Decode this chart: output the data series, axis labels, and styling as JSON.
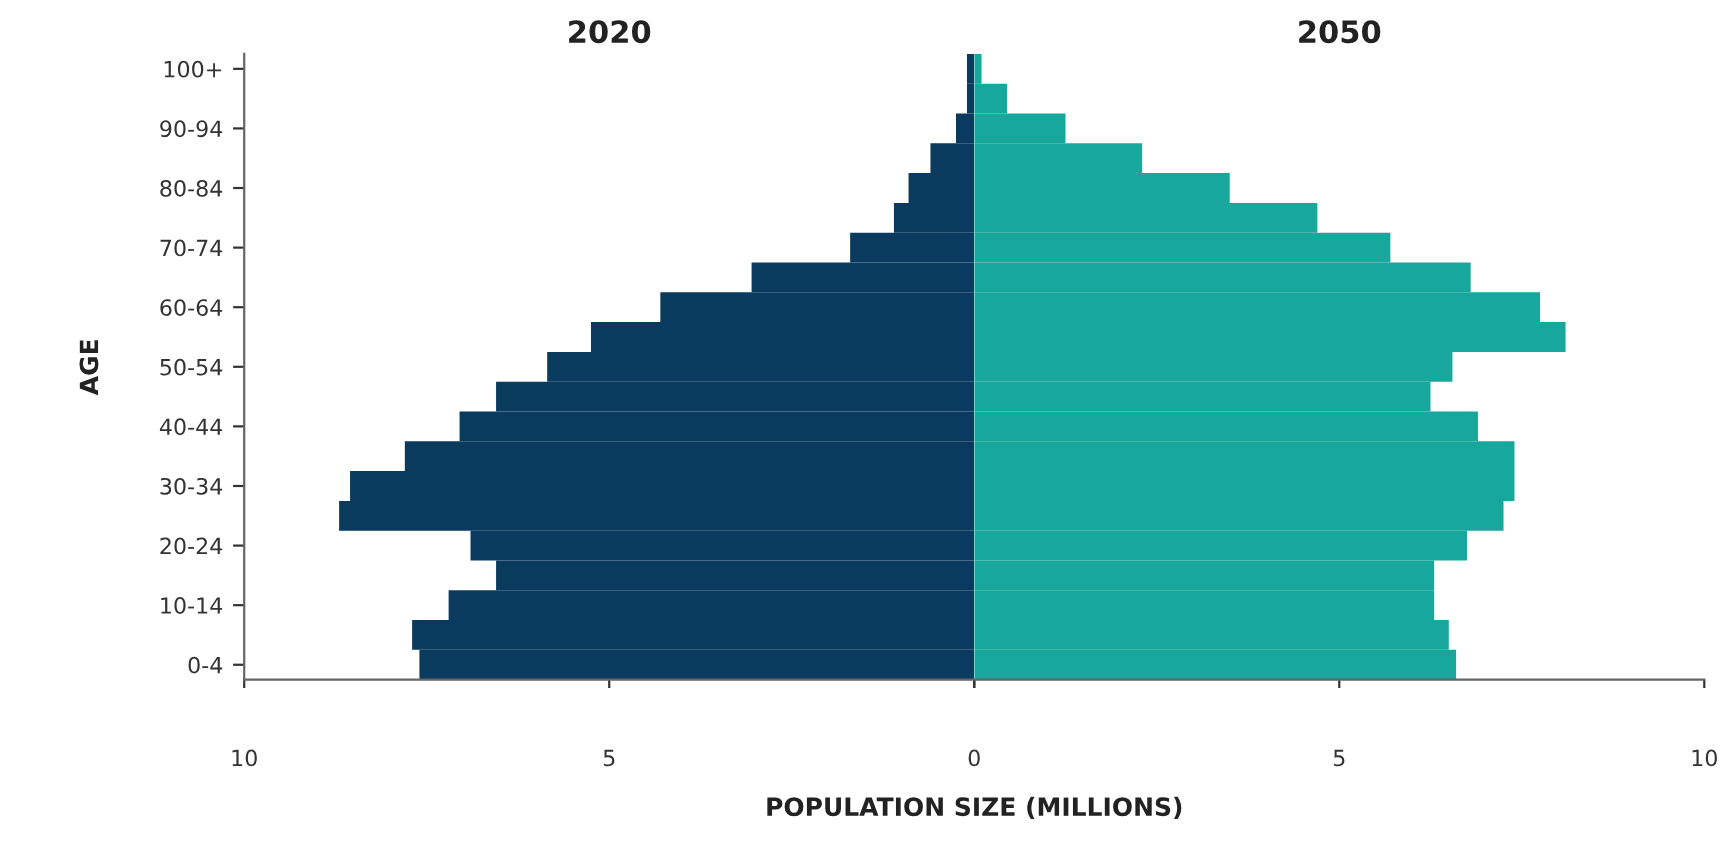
{
  "chart_data": [
    {
      "type": "bar",
      "orientation": "horizontal",
      "title": "2020",
      "ylabel": "AGE",
      "xlabel": "POPULATION SIZE (MILLIONS)",
      "categories": [
        "100+",
        null,
        "90-94",
        null,
        "80-84",
        null,
        "70-74",
        null,
        "60-64",
        null,
        "50-54",
        null,
        "40-44",
        null,
        "30-34",
        null,
        "20-24",
        null,
        "10-14",
        null,
        "0-4"
      ],
      "series": [
        {
          "color": "#0a3a5e",
          "values": [
            0.1,
            0.1,
            0.25,
            0.6,
            0.9,
            1.1,
            1.7,
            3.05,
            4.3,
            5.25,
            5.85,
            6.55,
            7.05,
            7.8,
            8.55,
            8.7,
            6.9,
            6.55,
            7.2,
            7.7,
            7.6
          ]
        }
      ],
      "xlim": [
        10,
        0
      ],
      "xticks": [
        10,
        5,
        {
          "value": 0,
          "label": null
        }
      ]
    },
    {
      "type": "bar",
      "orientation": "horizontal",
      "title": "2050",
      "series": [
        {
          "color": "#17a79c",
          "values": [
            0.1,
            0.45,
            1.25,
            2.3,
            3.5,
            4.7,
            5.7,
            6.8,
            7.75,
            8.1,
            6.55,
            6.25,
            6.9,
            7.4,
            7.4,
            7.25,
            6.75,
            6.3,
            6.3,
            6.5,
            6.6
          ]
        }
      ],
      "xlim": [
        0,
        10
      ],
      "xticks": [
        0,
        5,
        10
      ],
      "tick_labels": "x"
    }
  ]
}
